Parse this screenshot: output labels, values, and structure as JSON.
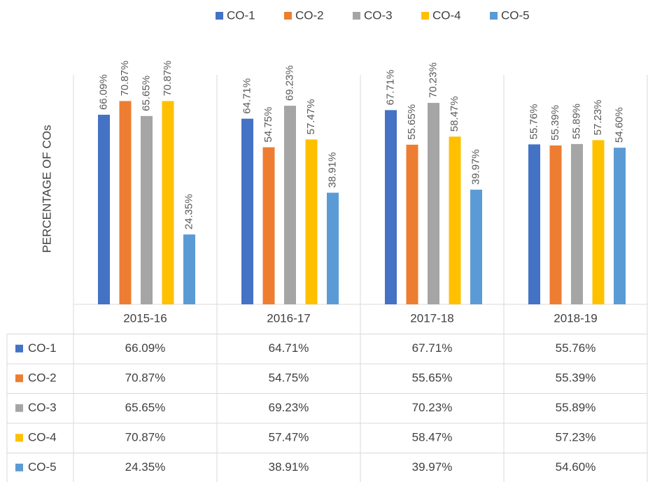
{
  "chart_data": {
    "type": "bar",
    "y_label": "PERCENTAGE OF COs",
    "categories": [
      "2015-16",
      "2016-17",
      "2017-18",
      "2018-19"
    ],
    "ylim": [
      0,
      80
    ],
    "series": [
      {
        "name": "CO-1",
        "color": "#4472c4",
        "values": [
          66.09,
          64.71,
          67.71,
          55.76
        ],
        "value_labels": [
          "66.09%",
          "64.71%",
          "67.71%",
          "55.76%"
        ]
      },
      {
        "name": "CO-2",
        "color": "#ed7d31",
        "values": [
          70.87,
          54.75,
          55.65,
          55.39
        ],
        "value_labels": [
          "70.87%",
          "54.75%",
          "55.65%",
          "55.39%"
        ]
      },
      {
        "name": "CO-3",
        "color": "#a5a5a5",
        "values": [
          65.65,
          69.23,
          70.23,
          55.89
        ],
        "value_labels": [
          "65.65%",
          "69.23%",
          "70.23%",
          "55.89%"
        ]
      },
      {
        "name": "CO-4",
        "color": "#ffc000",
        "values": [
          70.87,
          57.47,
          58.47,
          57.23
        ],
        "value_labels": [
          "70.87%",
          "57.47%",
          "58.47%",
          "57.23%"
        ]
      },
      {
        "name": "CO-5",
        "color": "#5b9bd5",
        "values": [
          24.35,
          38.91,
          39.97,
          54.6
        ],
        "value_labels": [
          "24.35%",
          "38.91%",
          "39.97%",
          "54.60%"
        ]
      }
    ]
  }
}
